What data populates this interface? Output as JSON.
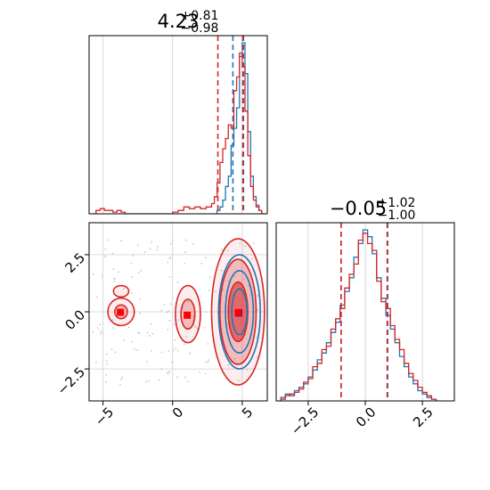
{
  "figure": {
    "colors": {
      "blue": "#1f77b4",
      "red": "#d62728",
      "grid": "#d0d0d0",
      "scatter": "#c8c8c8",
      "marker_blue": "#0000ff",
      "marker_red": "#ff0000"
    }
  },
  "chart_data": [
    {
      "type": "histogram",
      "panel": "top-left",
      "title": {
        "value": "4.23",
        "plus": "+0.81",
        "minus": "−0.98"
      },
      "xlim": [
        -6.0,
        6.8
      ],
      "series": [
        {
          "color": "blue",
          "quantiles": [
            4.33,
            5.09
          ],
          "bins": [
            [
              3.0,
              0.0
            ],
            [
              3.2,
              0.02
            ],
            [
              3.4,
              0.04
            ],
            [
              3.6,
              0.08
            ],
            [
              3.8,
              0.16
            ],
            [
              4.0,
              0.22
            ],
            [
              4.2,
              0.4
            ],
            [
              4.4,
              0.5
            ],
            [
              4.6,
              0.62
            ],
            [
              4.8,
              0.92
            ],
            [
              5.0,
              1.0
            ],
            [
              5.2,
              0.82
            ],
            [
              5.4,
              0.48
            ],
            [
              5.6,
              0.22
            ],
            [
              5.8,
              0.1
            ],
            [
              6.0,
              0.05
            ],
            [
              6.2,
              0.02
            ],
            [
              6.4,
              0.0
            ]
          ]
        },
        {
          "color": "red",
          "quantiles": [
            3.25,
            5.04
          ],
          "bins": [
            [
              -5.7,
              0.0
            ],
            [
              -5.5,
              0.02
            ],
            [
              -5.2,
              0.03
            ],
            [
              -4.9,
              0.02
            ],
            [
              -4.6,
              0.02
            ],
            [
              -4.3,
              0.01
            ],
            [
              -4.0,
              0.02
            ],
            [
              -3.7,
              0.01
            ],
            [
              -3.4,
              0.0
            ],
            [
              -2.5,
              0.0
            ],
            [
              0.0,
              0.01
            ],
            [
              0.4,
              0.02
            ],
            [
              0.8,
              0.04
            ],
            [
              1.2,
              0.03
            ],
            [
              1.6,
              0.04
            ],
            [
              2.0,
              0.03
            ],
            [
              2.4,
              0.04
            ],
            [
              2.8,
              0.06
            ],
            [
              3.0,
              0.1
            ],
            [
              3.2,
              0.18
            ],
            [
              3.4,
              0.3
            ],
            [
              3.6,
              0.38
            ],
            [
              3.8,
              0.44
            ],
            [
              4.0,
              0.52
            ],
            [
              4.2,
              0.5
            ],
            [
              4.4,
              0.72
            ],
            [
              4.6,
              0.8
            ],
            [
              4.8,
              0.94
            ],
            [
              5.0,
              0.86
            ],
            [
              5.2,
              0.6
            ],
            [
              5.4,
              0.34
            ],
            [
              5.6,
              0.16
            ],
            [
              5.8,
              0.08
            ],
            [
              6.0,
              0.04
            ],
            [
              6.2,
              0.02
            ],
            [
              6.4,
              0.0
            ]
          ]
        }
      ]
    },
    {
      "type": "histogram",
      "panel": "bottom-right",
      "title": {
        "value": "−0.05",
        "plus": "+1.02",
        "minus": "−1.00"
      },
      "xlim": [
        -3.9,
        3.9
      ],
      "xticks": [
        "−2.5",
        "0.0",
        "2.5"
      ],
      "xtick_values": [
        -2.5,
        0.0,
        2.5
      ],
      "series": [
        {
          "color": "blue",
          "quantiles": [
            -1.06,
            0.98
          ],
          "bins": [
            [
              -3.7,
              0.02
            ],
            [
              -3.5,
              0.04
            ],
            [
              -3.3,
              0.03
            ],
            [
              -3.1,
              0.06
            ],
            [
              -2.9,
              0.08
            ],
            [
              -2.7,
              0.1
            ],
            [
              -2.5,
              0.14
            ],
            [
              -2.3,
              0.18
            ],
            [
              -2.1,
              0.24
            ],
            [
              -1.9,
              0.28
            ],
            [
              -1.7,
              0.34
            ],
            [
              -1.5,
              0.4
            ],
            [
              -1.3,
              0.46
            ],
            [
              -1.1,
              0.56
            ],
            [
              -0.9,
              0.64
            ],
            [
              -0.7,
              0.72
            ],
            [
              -0.5,
              0.84
            ],
            [
              -0.3,
              0.92
            ],
            [
              -0.1,
              1.0
            ],
            [
              0.1,
              0.96
            ],
            [
              0.3,
              0.86
            ],
            [
              0.5,
              0.72
            ],
            [
              0.7,
              0.6
            ],
            [
              0.9,
              0.5
            ],
            [
              1.1,
              0.42
            ],
            [
              1.3,
              0.34
            ],
            [
              1.5,
              0.26
            ],
            [
              1.7,
              0.2
            ],
            [
              1.9,
              0.14
            ],
            [
              2.1,
              0.1
            ],
            [
              2.3,
              0.06
            ],
            [
              2.5,
              0.04
            ],
            [
              2.7,
              0.02
            ],
            [
              2.9,
              0.01
            ]
          ]
        },
        {
          "color": "red",
          "quantiles": [
            -1.06,
            0.96
          ],
          "bins": [
            [
              -3.7,
              0.01
            ],
            [
              -3.5,
              0.03
            ],
            [
              -3.3,
              0.04
            ],
            [
              -3.1,
              0.05
            ],
            [
              -2.9,
              0.07
            ],
            [
              -2.7,
              0.11
            ],
            [
              -2.5,
              0.13
            ],
            [
              -2.3,
              0.2
            ],
            [
              -2.1,
              0.22
            ],
            [
              -1.9,
              0.3
            ],
            [
              -1.7,
              0.32
            ],
            [
              -1.5,
              0.42
            ],
            [
              -1.3,
              0.48
            ],
            [
              -1.1,
              0.54
            ],
            [
              -0.9,
              0.66
            ],
            [
              -0.7,
              0.74
            ],
            [
              -0.5,
              0.8
            ],
            [
              -0.3,
              0.94
            ],
            [
              -0.1,
              0.98
            ],
            [
              0.1,
              0.92
            ],
            [
              0.3,
              0.88
            ],
            [
              0.5,
              0.7
            ],
            [
              0.7,
              0.58
            ],
            [
              0.9,
              0.54
            ],
            [
              1.1,
              0.44
            ],
            [
              1.3,
              0.36
            ],
            [
              1.5,
              0.3
            ],
            [
              1.7,
              0.22
            ],
            [
              1.9,
              0.16
            ],
            [
              2.1,
              0.12
            ],
            [
              2.3,
              0.08
            ],
            [
              2.5,
              0.05
            ],
            [
              2.7,
              0.03
            ],
            [
              2.9,
              0.01
            ]
          ]
        }
      ]
    },
    {
      "type": "contour",
      "panel": "bottom-left",
      "xlim": [
        -6.0,
        6.8
      ],
      "ylim": [
        -3.9,
        3.9
      ],
      "xticks": [
        "−5",
        "0",
        "5"
      ],
      "xtick_values": [
        -5,
        0,
        5
      ],
      "yticks": [
        "−2.5",
        "0.0",
        "2.5"
      ],
      "ytick_values": [
        -2.5,
        0.0,
        2.5
      ],
      "markers": [
        {
          "color": "marker_blue",
          "x": 4.75,
          "y": -0.05
        },
        {
          "color": "marker_red",
          "x": 4.72,
          "y": -0.03
        },
        {
          "color": "marker_red",
          "x": 1.05,
          "y": -0.15
        },
        {
          "color": "marker_red",
          "x": -3.75,
          "y": -0.02
        }
      ],
      "red_regions": [
        {
          "center": [
            4.7,
            0.0
          ],
          "ellipses": [
            [
              1.9,
              3.2,
              0.08
            ],
            [
              1.3,
              2.3,
              0.25
            ],
            [
              0.7,
              1.3,
              0.55
            ]
          ]
        },
        {
          "center": [
            1.1,
            -0.1
          ],
          "ellipses": [
            [
              0.9,
              1.25,
              0.08
            ],
            [
              0.5,
              0.65,
              0.25
            ]
          ]
        },
        {
          "center": [
            -3.7,
            0.0
          ],
          "ellipses": [
            [
              0.95,
              0.6,
              0.08
            ],
            [
              0.45,
              0.3,
              0.25
            ]
          ]
        },
        {
          "center": [
            -3.7,
            0.9
          ],
          "ellipses": [
            [
              0.55,
              0.25,
              0.08
            ]
          ]
        }
      ],
      "blue_contours": [
        {
          "center": [
            4.8,
            0.0
          ],
          "ellipses": [
            [
              1.5,
              2.5
            ],
            [
              1.0,
              1.8
            ],
            [
              0.55,
              1.0
            ]
          ]
        }
      ],
      "scatter_spread": {
        "x": [
          -5.8,
          6.6
        ],
        "y": [
          -3.2,
          3.2
        ]
      }
    }
  ]
}
